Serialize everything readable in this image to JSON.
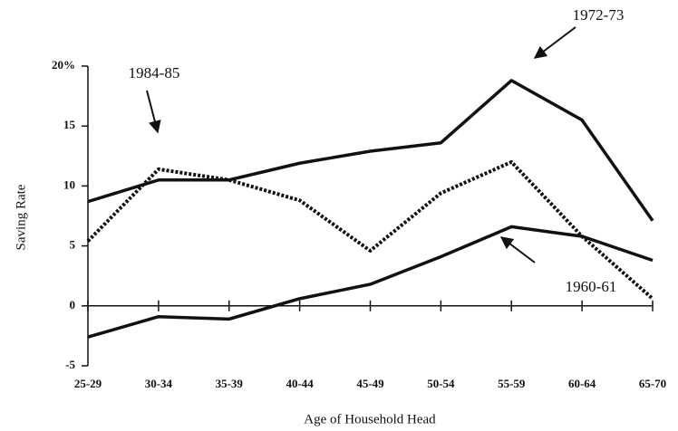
{
  "chart_data": {
    "type": "line",
    "x_label": "Age of Household Head",
    "y_label": "Saving Rate",
    "categories": [
      "25-29",
      "30-34",
      "35-39",
      "40-44",
      "45-49",
      "50-54",
      "55-59",
      "60-64",
      "65-70"
    ],
    "ylim": [
      -5,
      20
    ],
    "yticks": [
      -5,
      0,
      5,
      10,
      15,
      {
        "value": 20,
        "label": "20%"
      }
    ],
    "series": [
      {
        "name": "1972-73",
        "color": "#111111",
        "style": "solid",
        "values": [
          8.7,
          10.5,
          10.5,
          11.9,
          12.9,
          13.6,
          18.8,
          15.5,
          7.1
        ]
      },
      {
        "name": "1984-85",
        "color": "#111111",
        "style": "dashed",
        "values": [
          5.4,
          11.4,
          10.5,
          8.8,
          4.6,
          9.4,
          12.0,
          5.8,
          0.6
        ]
      },
      {
        "name": "1960-61",
        "color": "#111111",
        "style": "solid",
        "values": [
          -2.6,
          -0.9,
          -1.1,
          0.6,
          1.8,
          4.1,
          6.6,
          5.8,
          3.8
        ]
      }
    ]
  }
}
